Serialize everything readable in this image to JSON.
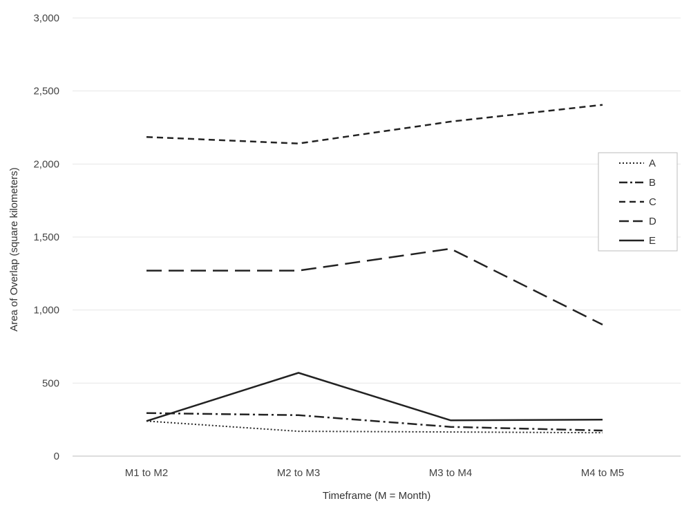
{
  "chart_data": {
    "type": "line",
    "title": "",
    "xlabel": "Timeframe (M = Month)",
    "ylabel": "Area of Overlap (square kilometers)",
    "categories": [
      "M1 to M2",
      "M2 to M3",
      "M3 to M4",
      "M4 to M5"
    ],
    "ylim": [
      0,
      3000
    ],
    "yticks": [
      "0",
      "500",
      "1,000",
      "1,500",
      "2,000",
      "2,500",
      "3,000"
    ],
    "ytick_values": [
      0,
      500,
      1000,
      1500,
      2000,
      2500,
      3000
    ],
    "grid": true,
    "legend_position": "right",
    "series": [
      {
        "name": "A",
        "values": [
          240,
          170,
          165,
          160
        ],
        "style": "dotted",
        "color": "#222222"
      },
      {
        "name": "B",
        "values": [
          295,
          280,
          200,
          175
        ],
        "style": "dash-dot",
        "color": "#222222"
      },
      {
        "name": "C",
        "values": [
          2185,
          2140,
          2290,
          2405
        ],
        "style": "dashed",
        "color": "#222222"
      },
      {
        "name": "D",
        "values": [
          1270,
          1270,
          1420,
          900
        ],
        "style": "long-dash",
        "color": "#222222"
      },
      {
        "name": "E",
        "values": [
          240,
          570,
          245,
          250
        ],
        "style": "solid",
        "color": "#222222"
      }
    ]
  }
}
